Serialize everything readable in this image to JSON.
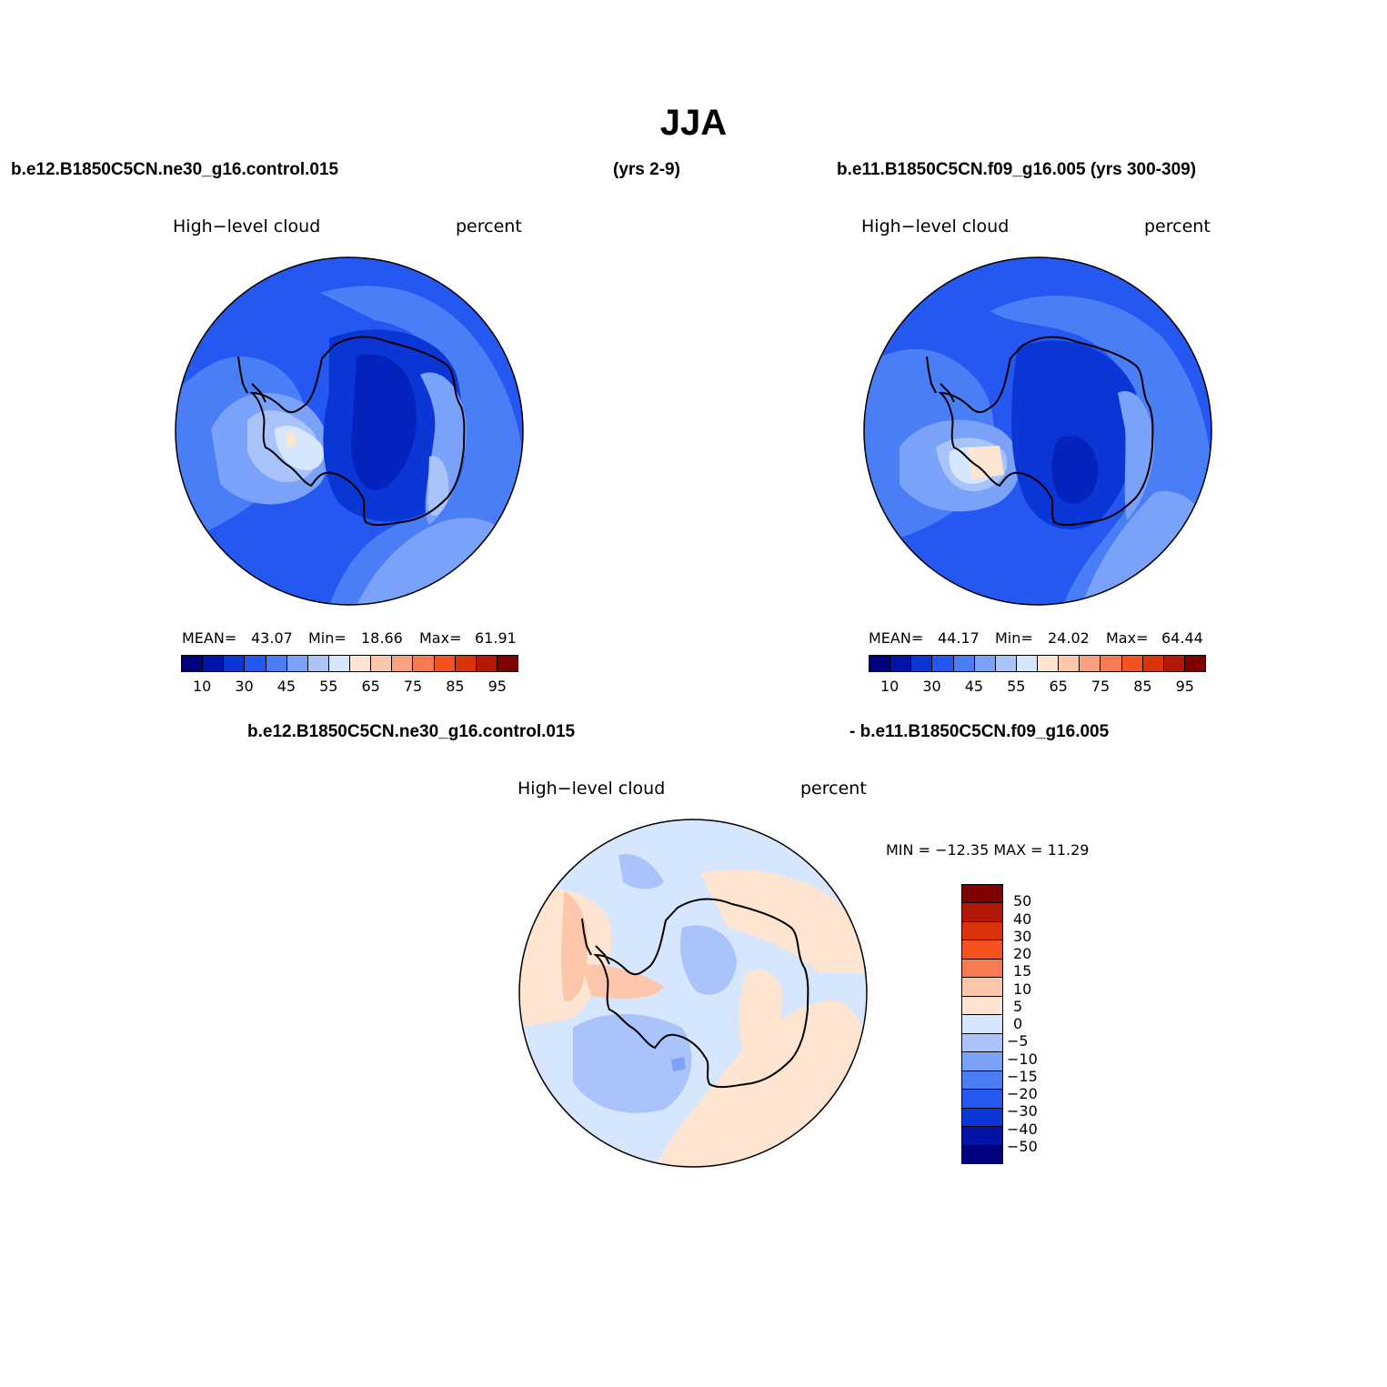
{
  "title": "JJA",
  "top_left_case": "b.e12.B1850C5CN.ne30_g16.control.015",
  "top_left_years": "(yrs 2-9)",
  "top_right_case": "b.e11.B1850C5CN.f09_g16.005 (yrs 300-309)",
  "diff_case_a": "b.e12.B1850C5CN.ne30_g16.control.015",
  "diff_case_b": "- b.e11.B1850C5CN.f09_g16.005",
  "panels": {
    "left": {
      "variable": "High−level cloud",
      "units": "percent",
      "mean_label": "MEAN=",
      "mean": "43.07",
      "min_label": "Min=",
      "min": "18.66",
      "max_label": "Max=",
      "max": "61.91"
    },
    "right": {
      "variable": "High−level cloud",
      "units": "percent",
      "mean_label": "MEAN=",
      "mean": "44.17",
      "min_label": "Min=",
      "min": "24.02",
      "max_label": "Max=",
      "max": "64.44"
    },
    "diff": {
      "variable": "High−level cloud",
      "units": "percent",
      "minmax": "MIN = −12.35 MAX =  11.29"
    }
  },
  "colorbar_abs": {
    "colors": [
      "#00007f",
      "#0014a8",
      "#0b36d6",
      "#2458f0",
      "#4a7ef6",
      "#7aa2f8",
      "#a9c4fb",
      "#d6e6fd",
      "#fde5d2",
      "#fcc6ab",
      "#f9a07e",
      "#f77a50",
      "#f5521f",
      "#db3408",
      "#b31805",
      "#800000"
    ],
    "tick_labels": [
      "10",
      "30",
      "45",
      "55",
      "65",
      "75",
      "85",
      "95"
    ]
  },
  "colorbar_diff": {
    "colors": [
      "#800000",
      "#b31805",
      "#db3408",
      "#f5521f",
      "#f77a50",
      "#fcc6ab",
      "#fde5d2",
      "#d6e6fd",
      "#a9c4fb",
      "#7aa2f8",
      "#4a7ef6",
      "#2458f0",
      "#0b36d6",
      "#0014a8",
      "#00007f"
    ],
    "tick_labels": [
      "50",
      "40",
      "30",
      "20",
      "15",
      "10",
      "5",
      "0",
      "−5",
      "−10",
      "−15",
      "−20",
      "−30",
      "−40",
      "−50"
    ]
  }
}
